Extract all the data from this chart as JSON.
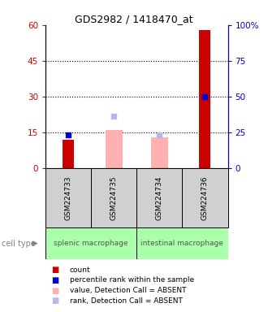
{
  "title": "GDS2982 / 1418470_at",
  "samples": [
    "GSM224733",
    "GSM224735",
    "GSM224734",
    "GSM224736"
  ],
  "cell_types": [
    {
      "label": "splenic macrophage",
      "samples": [
        0,
        1
      ]
    },
    {
      "label": "intestinal macrophage",
      "samples": [
        2,
        3
      ]
    }
  ],
  "count_values": [
    12,
    0,
    0,
    58
  ],
  "count_absent": [
    false,
    true,
    true,
    false
  ],
  "rank_values": [
    14,
    0,
    14,
    30
  ],
  "rank_absent": [
    false,
    true,
    true,
    false
  ],
  "value_absent_bars": [
    0,
    16,
    13,
    0
  ],
  "rank_absent_markers": [
    0,
    22,
    14,
    0
  ],
  "ylim_left": [
    0,
    60
  ],
  "ylim_right": [
    0,
    100
  ],
  "yticks_left": [
    0,
    15,
    30,
    45,
    60
  ],
  "yticks_right": [
    0,
    25,
    50,
    75,
    100
  ],
  "ytick_labels_right": [
    "0",
    "25",
    "50",
    "75",
    "100%"
  ],
  "colors": {
    "count_present": "#cc0000",
    "count_absent": "#ffb0b0",
    "rank_present": "#0000cc",
    "rank_absent": "#b8b8e8",
    "cell_type_bg": "#aaffaa",
    "sample_bg": "#d0d0d0",
    "left_axis_color": "#cc0000",
    "right_axis_color": "#0000cc"
  },
  "legend": [
    {
      "color": "#cc0000",
      "label": "count"
    },
    {
      "color": "#0000cc",
      "label": "percentile rank within the sample"
    },
    {
      "color": "#ffb0b0",
      "label": "value, Detection Call = ABSENT"
    },
    {
      "color": "#b8b8e8",
      "label": "rank, Detection Call = ABSENT"
    }
  ],
  "bar_width": 0.25
}
